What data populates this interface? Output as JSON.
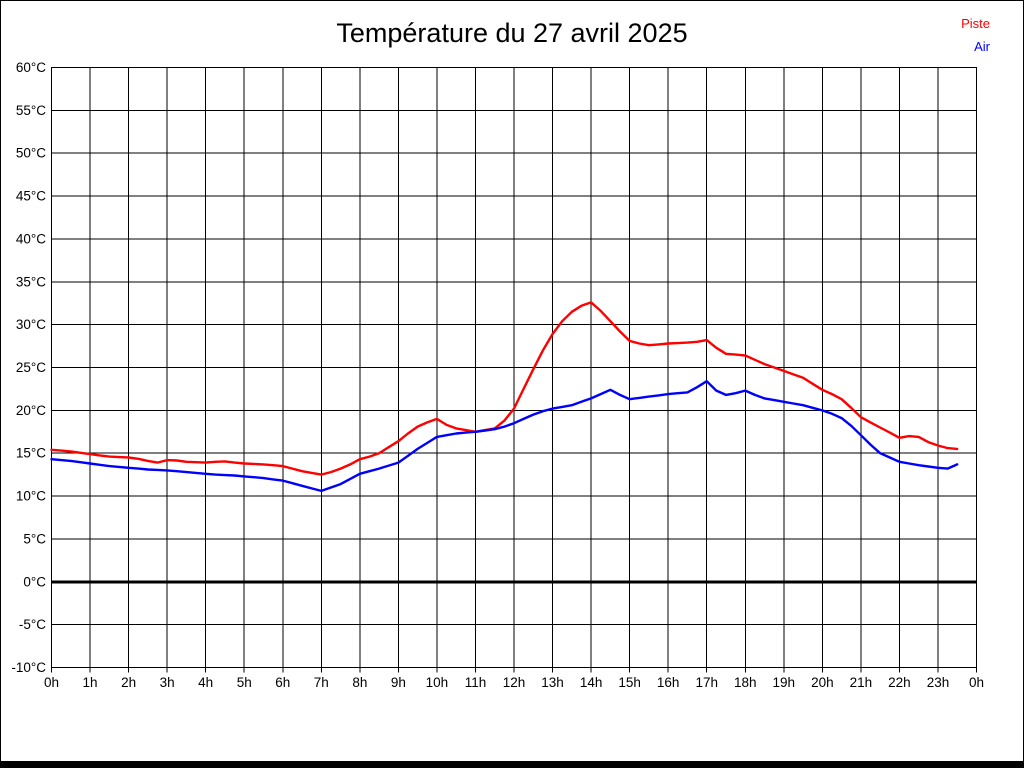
{
  "page": {
    "title": "Température du 27 avril 2025"
  },
  "legend": {
    "position": "top-right",
    "items": [
      {
        "label": "Piste",
        "color": "#ff0000"
      },
      {
        "label": "Air",
        "color": "#0000ff"
      }
    ]
  },
  "chart_data": {
    "type": "line",
    "title": "Température du 27 avril 2025",
    "xlabel": "",
    "ylabel": "",
    "xlim": [
      0,
      24
    ],
    "ylim": [
      -10,
      60
    ],
    "y_tick_step": 5,
    "grid": true,
    "grid_color": "#000000",
    "zero_line": {
      "value": 0,
      "color": "#000000",
      "width": 3
    },
    "x_tick_labels": [
      "0h",
      "1h",
      "2h",
      "3h",
      "4h",
      "5h",
      "6h",
      "7h",
      "8h",
      "9h",
      "10h",
      "11h",
      "12h",
      "13h",
      "14h",
      "15h",
      "16h",
      "17h",
      "18h",
      "19h",
      "20h",
      "21h",
      "22h",
      "23h",
      "0h"
    ],
    "y_tick_labels": [
      "60°C",
      "55°C",
      "50°C",
      "45°C",
      "40°C",
      "35°C",
      "30°C",
      "25°C",
      "20°C",
      "15°C",
      "10°C",
      "5°C",
      "0°C",
      "-5°C",
      "-10°C"
    ],
    "x_unit": "hour-of-day",
    "y_unit": "°C",
    "x": [
      0,
      0.25,
      0.5,
      0.75,
      1,
      1.25,
      1.5,
      1.75,
      2,
      2.25,
      2.5,
      2.75,
      3,
      3.25,
      3.5,
      3.75,
      4,
      4.25,
      4.5,
      4.75,
      5,
      5.25,
      5.5,
      5.75,
      6,
      6.25,
      6.5,
      6.75,
      7,
      7.25,
      7.5,
      7.75,
      8,
      8.25,
      8.5,
      8.75,
      9,
      9.25,
      9.5,
      9.75,
      10,
      10.25,
      10.5,
      10.75,
      11,
      11.25,
      11.5,
      11.75,
      12,
      12.25,
      12.5,
      12.75,
      13,
      13.25,
      13.5,
      13.75,
      14,
      14.25,
      14.5,
      14.75,
      15,
      15.25,
      15.5,
      15.75,
      16,
      16.25,
      16.5,
      16.75,
      17,
      17.25,
      17.5,
      17.75,
      18,
      18.25,
      18.5,
      18.75,
      19,
      19.25,
      19.5,
      19.75,
      20,
      20.25,
      20.5,
      20.75,
      21,
      21.25,
      21.5,
      21.75,
      22,
      22.25,
      22.5,
      22.75,
      23,
      23.25,
      23.5
    ],
    "series": [
      {
        "name": "Piste",
        "color": "#ff0000",
        "values": [
          15.4,
          15.3,
          15.2,
          15.05,
          14.9,
          14.75,
          14.6,
          14.55,
          14.5,
          14.35,
          14.1,
          13.9,
          14.2,
          14.15,
          14.0,
          13.95,
          13.9,
          14.0,
          14.05,
          13.9,
          13.8,
          13.75,
          13.7,
          13.6,
          13.5,
          13.2,
          12.9,
          12.7,
          12.5,
          12.8,
          13.2,
          13.7,
          14.3,
          14.6,
          15.0,
          15.7,
          16.4,
          17.3,
          18.1,
          18.6,
          19.0,
          18.3,
          17.9,
          17.7,
          17.5,
          17.7,
          17.9,
          18.8,
          20.2,
          22.5,
          24.8,
          27.0,
          28.9,
          30.4,
          31.5,
          32.2,
          32.6,
          31.6,
          30.4,
          29.2,
          28.1,
          27.8,
          27.6,
          27.7,
          27.8,
          27.85,
          27.9,
          28.0,
          28.2,
          27.3,
          26.6,
          26.5,
          26.4,
          25.9,
          25.4,
          25.0,
          24.6,
          24.2,
          23.8,
          23.1,
          22.4,
          21.9,
          21.3,
          20.3,
          19.2,
          18.6,
          18.0,
          17.4,
          16.8,
          17.0,
          16.9,
          16.3,
          15.9,
          15.6,
          15.5
        ]
      },
      {
        "name": "Air",
        "color": "#0000ff",
        "values": [
          14.3,
          14.2,
          14.1,
          13.95,
          13.8,
          13.65,
          13.5,
          13.4,
          13.3,
          13.2,
          13.1,
          13.05,
          13.0,
          12.9,
          12.8,
          12.7,
          12.6,
          12.5,
          12.45,
          12.4,
          12.3,
          12.2,
          12.1,
          11.95,
          11.8,
          11.5,
          11.2,
          10.9,
          10.6,
          11.0,
          11.4,
          12.0,
          12.6,
          12.9,
          13.2,
          13.55,
          13.9,
          14.7,
          15.5,
          16.2,
          16.9,
          17.1,
          17.3,
          17.4,
          17.5,
          17.65,
          17.8,
          18.1,
          18.5,
          19.0,
          19.5,
          19.9,
          20.2,
          20.4,
          20.6,
          21.0,
          21.4,
          21.9,
          22.4,
          21.8,
          21.3,
          21.45,
          21.6,
          21.75,
          21.9,
          22.0,
          22.1,
          22.7,
          23.4,
          22.3,
          21.8,
          22.0,
          22.3,
          21.8,
          21.4,
          21.2,
          21.0,
          20.8,
          20.6,
          20.3,
          20.0,
          19.6,
          19.1,
          18.2,
          17.1,
          16.0,
          15.0,
          14.5,
          14.0,
          13.8,
          13.6,
          13.45,
          13.3,
          13.2,
          13.7
        ]
      }
    ],
    "legend_position": "top-right"
  }
}
